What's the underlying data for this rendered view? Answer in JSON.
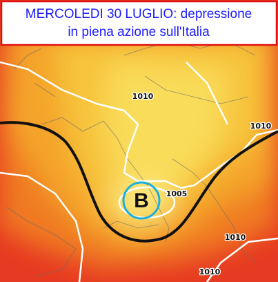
{
  "title": {
    "lines": [
      "MERCOLEDI 30 LUGLIO: depressione",
      "in piena azione sull'Italia"
    ]
  },
  "low": {
    "label": "B"
  },
  "isobar_labels": [
    "1010",
    "1010",
    "1005",
    "1010",
    "1010"
  ]
}
